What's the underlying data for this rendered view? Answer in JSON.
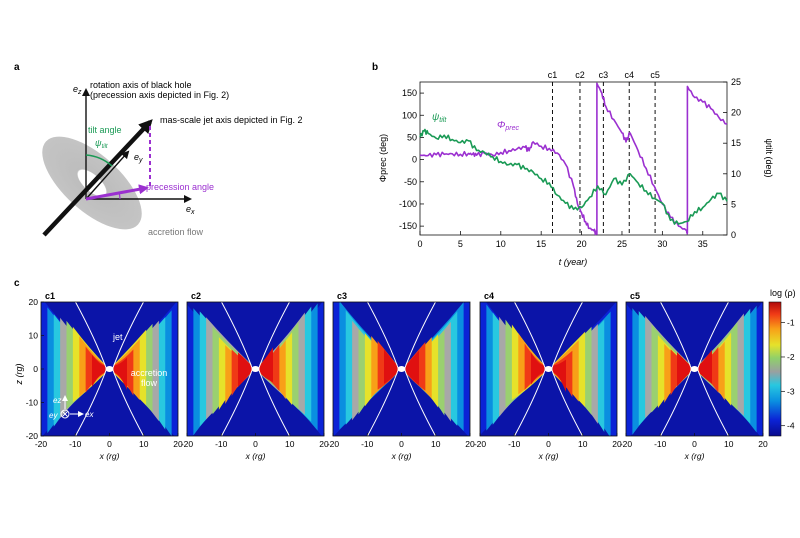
{
  "figure": {
    "panel_a": {
      "label": "a",
      "axis_ez": "e",
      "axis_ez_sub": "z",
      "axis_ex": "e",
      "axis_ex_sub": "x",
      "axis_ey": "e",
      "axis_ey_sub": "y",
      "rotation_axis_line1": "rotation axis of black hole",
      "rotation_axis_line2": "(precession axis depicted in Fig. 2)",
      "jet_axis_label": "mas-scale jet axis depicted in Fig. 2",
      "tilt_angle_label": "tilt angle",
      "tilt_symbol": "ψ",
      "tilt_symbol_sub": "tilt",
      "precession_angle_label": "precession angle",
      "accretion_flow_label": "accretion flow",
      "colors": {
        "tilt": "#1a9a55",
        "precession": "#9b30d0",
        "disk": "#bdbdbd"
      }
    },
    "panel_b": {
      "label": "b",
      "chart_data": {
        "type": "line",
        "xlabel": "t (year)",
        "ylabel_left": "Φprec (deg)",
        "ylabel_right": "ψtilt (deg)",
        "xlim": [
          0,
          38
        ],
        "ylim_left": [
          -170,
          175
        ],
        "ylim_right": [
          0,
          25
        ],
        "x_ticks": [
          0,
          5,
          10,
          15,
          20,
          25,
          30,
          35
        ],
        "y_ticks_left": [
          -150,
          -100,
          -50,
          0,
          50,
          100,
          150
        ],
        "y_ticks_right": [
          0,
          5,
          10,
          15,
          20,
          25
        ],
        "markers": [
          {
            "label": "c1",
            "x": 16.4
          },
          {
            "label": "c2",
            "x": 19.8
          },
          {
            "label": "c3",
            "x": 22.7
          },
          {
            "label": "c4",
            "x": 25.9
          },
          {
            "label": "c5",
            "x": 29.1
          }
        ],
        "series": [
          {
            "name": "Φprec",
            "axis": "left",
            "color": "#9b30d0",
            "x": [
              0,
              1,
              2,
              3,
              4,
              5,
              6,
              6.5,
              7,
              8,
              9,
              10,
              11,
              12,
              13,
              13.5,
              14,
              15,
              16,
              17,
              18,
              19,
              19.5,
              20,
              20.5,
              21,
              21.5,
              21.9,
              21.9,
              22.5,
              23,
              24,
              25,
              25.5,
              26,
              27,
              28,
              29,
              30,
              31,
              32,
              33,
              33.1,
              33.1,
              34,
              35,
              36,
              37,
              38
            ],
            "y": [
              10,
              9,
              11,
              12,
              13,
              12,
              14,
              12,
              10,
              14,
              10,
              16,
              20,
              24,
              28,
              20,
              40,
              30,
              25,
              15,
              -10,
              -60,
              -100,
              -120,
              -140,
              -155,
              -160,
              -168,
              172,
              150,
              120,
              90,
              60,
              40,
              60,
              20,
              -20,
              -60,
              -100,
              -130,
              -150,
              -160,
              -165,
              165,
              140,
              130,
              115,
              95,
              80
            ]
          },
          {
            "name": "ψtilt",
            "axis": "right",
            "color": "#1a9a55",
            "x": [
              0,
              0.5,
              1,
              2,
              3,
              4,
              5,
              6,
              7,
              8,
              9,
              10,
              11,
              12,
              13,
              14,
              15,
              16,
              17,
              18,
              19,
              20,
              21,
              22,
              23,
              24,
              25,
              26,
              27,
              28,
              29,
              30,
              31,
              32,
              33,
              34,
              35,
              36,
              37,
              38
            ],
            "y": [
              16,
              17,
              16.6,
              15.8,
              16.3,
              15.6,
              15.1,
              15.4,
              13.8,
              13.5,
              12.8,
              12,
              11.5,
              11.5,
              10.8,
              10.3,
              9.2,
              8.5,
              6.5,
              5.2,
              4.2,
              4.5,
              6.2,
              8,
              6.6,
              9.2,
              8.2,
              10,
              8.5,
              7.2,
              6,
              5.2,
              2.4,
              1.8,
              2.2,
              3.8,
              4.5,
              5.8,
              6.8,
              5.5
            ]
          }
        ],
        "annotations": [
          {
            "text": "ψ",
            "sub": "tilt",
            "color": "#1a9a55"
          },
          {
            "text": "Φ",
            "sub": "prec",
            "color": "#9b30d0"
          }
        ]
      }
    },
    "panel_c": {
      "label": "c",
      "chart_data": {
        "type": "heatmap",
        "xlabel": "x (rg)",
        "ylabel": "z (rg)",
        "xlim": [
          -20,
          20
        ],
        "ylim": [
          -20,
          20
        ],
        "x_ticks": [
          -20,
          -10,
          0,
          10,
          20
        ],
        "y_ticks": [
          -20,
          -10,
          0,
          10,
          20
        ],
        "colorbar_label": "log (ρ)",
        "colorbar_ticks": [
          -1,
          -2,
          -3,
          -4
        ],
        "colorbar_range": [
          -4.3,
          -0.4
        ],
        "snapshots": [
          "c1",
          "c2",
          "c3",
          "c4",
          "c5"
        ],
        "annotation_jet": "jet",
        "annotation_flow_line1": "accretion",
        "annotation_flow_line2": "flow",
        "inset_ez": "e",
        "inset_ez_sub": "z",
        "inset_ex": "e",
        "inset_ex_sub": "x",
        "inset_ey": "e",
        "inset_ey_sub": "y"
      }
    }
  }
}
